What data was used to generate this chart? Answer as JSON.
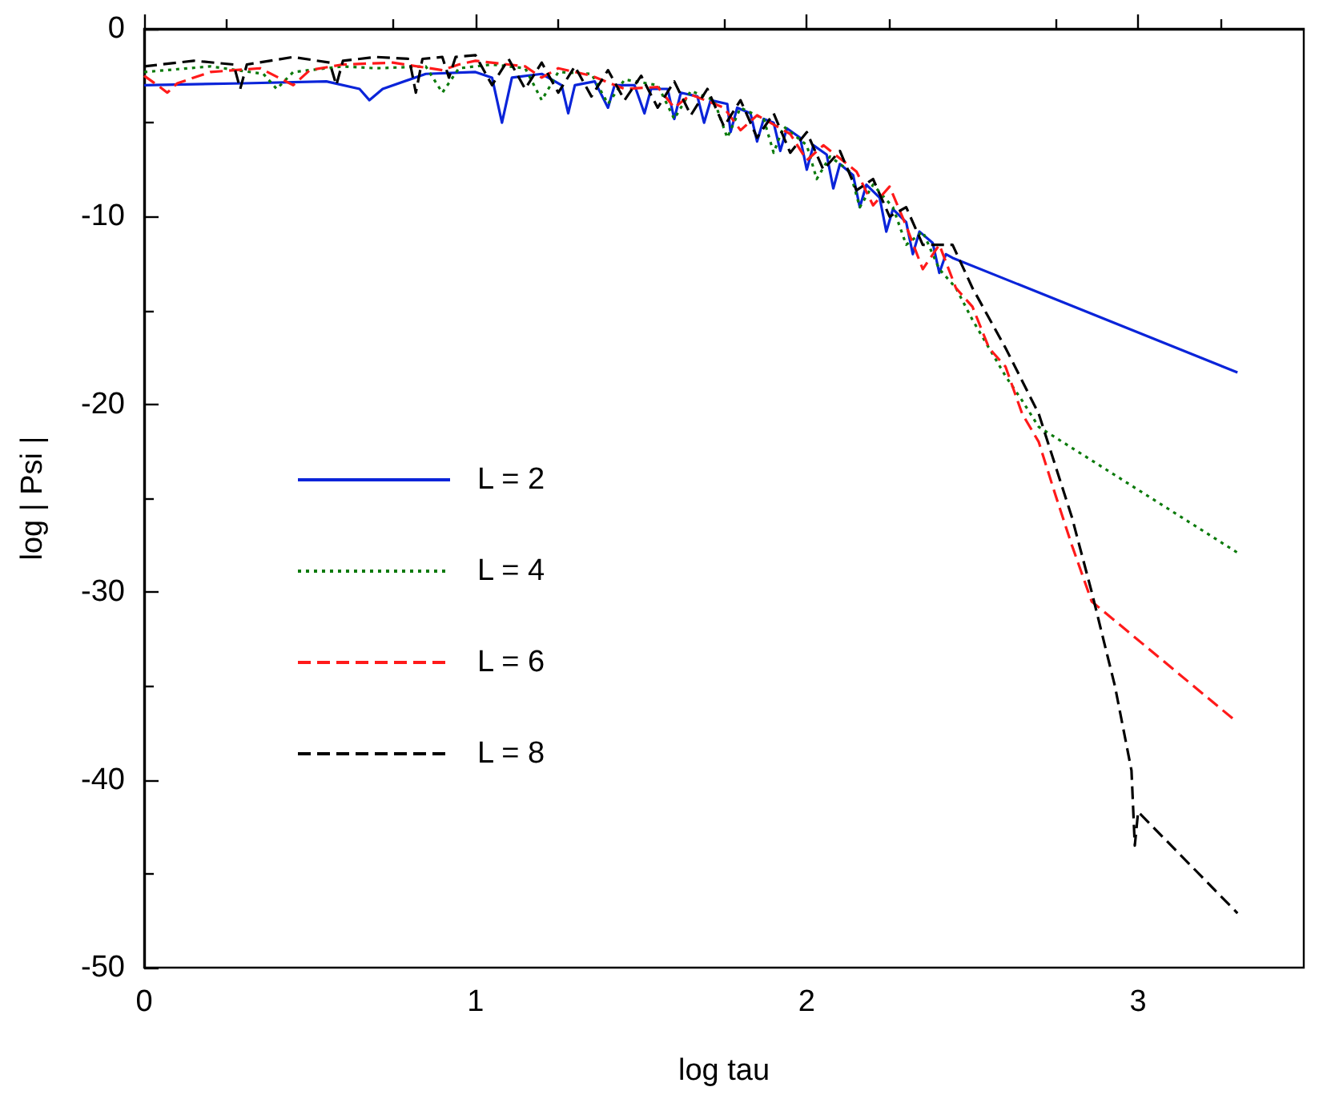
{
  "chart_data": {
    "type": "line",
    "xlabel": "log tau",
    "ylabel": "log | Psi |",
    "xlim": [
      0,
      3.5
    ],
    "ylim": [
      -50,
      0
    ],
    "xticks": [
      0,
      1,
      2,
      3
    ],
    "yticks": [
      -50,
      -40,
      -30,
      -20,
      -10,
      0
    ],
    "legend": "left",
    "marker": "none",
    "series": [
      {
        "name": "L = 2",
        "color": "#0a24d9",
        "line_style": "solid",
        "x": [
          0,
          0.3,
          0.55,
          0.65,
          0.68,
          0.72,
          0.85,
          1.0,
          1.05,
          1.08,
          1.11,
          1.2,
          1.26,
          1.28,
          1.3,
          1.36,
          1.4,
          1.42,
          1.48,
          1.51,
          1.53,
          1.58,
          1.6,
          1.62,
          1.67,
          1.69,
          1.71,
          1.76,
          1.77,
          1.79,
          1.83,
          1.85,
          1.87,
          1.9,
          1.92,
          1.94,
          1.98,
          2.0,
          2.02,
          2.06,
          2.08,
          2.1,
          2.14,
          2.16,
          2.18,
          2.22,
          2.24,
          2.26,
          2.3,
          2.32,
          2.34,
          2.38,
          2.4,
          2.42,
          2.44,
          3.3
        ],
        "values": [
          -3.0,
          -2.9,
          -2.8,
          -3.2,
          -3.8,
          -3.2,
          -2.4,
          -2.3,
          -2.6,
          -5.0,
          -2.6,
          -2.4,
          -3.0,
          -4.5,
          -3.0,
          -2.8,
          -4.2,
          -3.0,
          -3.0,
          -4.5,
          -3.2,
          -3.2,
          -4.8,
          -3.4,
          -3.6,
          -5.0,
          -3.8,
          -4.0,
          -5.5,
          -4.2,
          -4.5,
          -6.0,
          -4.8,
          -5.0,
          -6.5,
          -5.3,
          -5.8,
          -7.5,
          -6.2,
          -6.7,
          -8.5,
          -7.2,
          -7.8,
          -9.5,
          -8.3,
          -9.0,
          -10.8,
          -9.6,
          -10.3,
          -12.0,
          -10.8,
          -11.4,
          -13.0,
          -12.0,
          -12.2,
          -18.3
        ]
      },
      {
        "name": "L = 4",
        "color": "#0b7a0b",
        "line_style": "dotted",
        "x": [
          0,
          0.2,
          0.36,
          0.4,
          0.45,
          0.6,
          0.7,
          0.85,
          0.9,
          0.95,
          1.05,
          1.15,
          1.2,
          1.25,
          1.35,
          1.4,
          1.45,
          1.55,
          1.6,
          1.65,
          1.72,
          1.76,
          1.8,
          1.87,
          1.9,
          1.93,
          2.0,
          2.03,
          2.07,
          2.13,
          2.16,
          2.2,
          2.26,
          2.3,
          2.35,
          2.4,
          2.45,
          2.5,
          2.55,
          2.6,
          2.65,
          2.7,
          3.3
        ],
        "values": [
          -2.3,
          -2.0,
          -2.4,
          -3.2,
          -2.3,
          -2.0,
          -2.1,
          -2.0,
          -3.4,
          -2.1,
          -1.9,
          -2.1,
          -3.8,
          -2.3,
          -2.4,
          -4.0,
          -2.7,
          -3.0,
          -4.8,
          -3.3,
          -3.8,
          -5.8,
          -4.2,
          -4.8,
          -6.6,
          -5.2,
          -6.2,
          -8.0,
          -6.8,
          -7.6,
          -9.5,
          -8.3,
          -9.5,
          -11.5,
          -10.8,
          -12.8,
          -13.8,
          -15.5,
          -17.0,
          -18.5,
          -19.8,
          -21.2,
          -27.9
        ]
      },
      {
        "name": "L = 6",
        "color": "#ff1a1a",
        "line_style": "dashed",
        "x": [
          0,
          0.04,
          0.07,
          0.1,
          0.2,
          0.35,
          0.45,
          0.5,
          0.6,
          0.75,
          0.9,
          0.95,
          1.0,
          1.15,
          1.2,
          1.25,
          1.35,
          1.45,
          1.55,
          1.6,
          1.65,
          1.75,
          1.8,
          1.85,
          1.95,
          2.0,
          2.05,
          2.15,
          2.2,
          2.25,
          2.3,
          2.35,
          2.4,
          2.45,
          2.5,
          2.55,
          2.6,
          2.65,
          2.7,
          2.75,
          2.8,
          2.86,
          3.29
        ],
        "values": [
          -2.5,
          -3.0,
          -3.4,
          -2.9,
          -2.3,
          -2.1,
          -3.0,
          -2.2,
          -1.9,
          -1.8,
          -2.2,
          -1.9,
          -1.7,
          -2.0,
          -2.6,
          -2.1,
          -2.5,
          -3.2,
          -3.1,
          -4.2,
          -3.5,
          -4.2,
          -5.4,
          -4.6,
          -5.6,
          -7.0,
          -6.2,
          -7.6,
          -9.4,
          -8.4,
          -10.5,
          -12.8,
          -11.5,
          -13.8,
          -14.8,
          -17.0,
          -18.0,
          -20.5,
          -22.0,
          -24.8,
          -27.5,
          -30.5,
          -36.8
        ]
      },
      {
        "name": "L = 8",
        "color": "#000000",
        "line_style": "dashed",
        "x": [
          0,
          0.15,
          0.27,
          0.29,
          0.31,
          0.45,
          0.56,
          0.58,
          0.6,
          0.7,
          0.8,
          0.82,
          0.84,
          0.9,
          0.92,
          0.94,
          1.0,
          1.05,
          1.1,
          1.15,
          1.2,
          1.25,
          1.3,
          1.35,
          1.4,
          1.45,
          1.5,
          1.55,
          1.6,
          1.65,
          1.7,
          1.75,
          1.8,
          1.85,
          1.9,
          1.95,
          2.0,
          2.05,
          2.1,
          2.15,
          2.2,
          2.25,
          2.3,
          2.35,
          2.44,
          2.5,
          2.6,
          2.7,
          2.8,
          2.86,
          2.93,
          2.98,
          2.99,
          3.0,
          3.3
        ],
        "values": [
          -2.0,
          -1.7,
          -1.9,
          -3.2,
          -1.9,
          -1.5,
          -1.8,
          -3.0,
          -1.7,
          -1.5,
          -1.6,
          -3.4,
          -1.6,
          -1.5,
          -2.6,
          -1.5,
          -1.4,
          -3.0,
          -1.6,
          -3.2,
          -1.8,
          -3.4,
          -2.0,
          -3.6,
          -2.2,
          -3.8,
          -2.5,
          -4.2,
          -2.8,
          -4.6,
          -3.2,
          -5.2,
          -3.8,
          -5.8,
          -4.5,
          -6.6,
          -5.5,
          -7.5,
          -6.5,
          -8.6,
          -8.0,
          -10.0,
          -9.5,
          -11.5,
          -11.5,
          -13.8,
          -17.0,
          -20.5,
          -26.0,
          -30.0,
          -35.0,
          -39.5,
          -43.5,
          -41.7,
          -47.1
        ]
      }
    ]
  }
}
